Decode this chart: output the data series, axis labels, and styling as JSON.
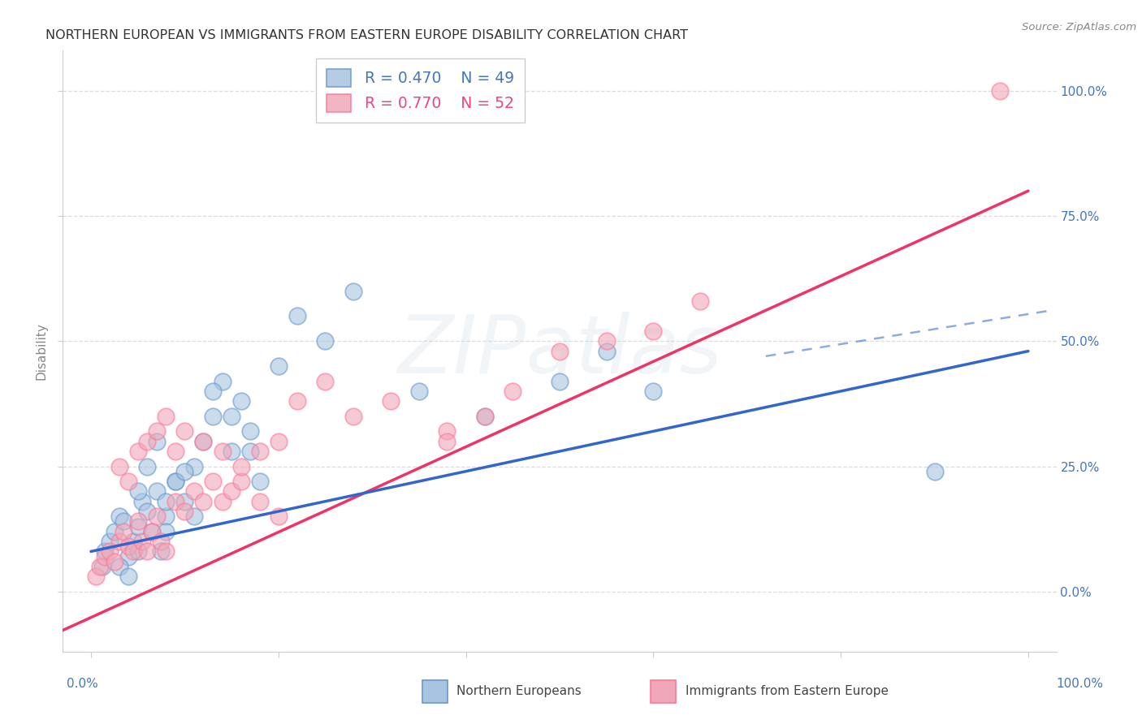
{
  "title": "NORTHERN EUROPEAN VS IMMIGRANTS FROM EASTERN EUROPE DISABILITY CORRELATION CHART",
  "source": "Source: ZipAtlas.com",
  "ylabel": "Disability",
  "ytick_labels": [
    "0.0%",
    "25.0%",
    "50.0%",
    "75.0%",
    "100.0%"
  ],
  "ytick_values": [
    0,
    25,
    50,
    75,
    100
  ],
  "legend_entries": [
    {
      "r": "R = 0.470",
      "n": "N = 49",
      "fill": "#A8C4E0",
      "edge": "#6699CC",
      "text": "#4477BB"
    },
    {
      "r": "R = 0.770",
      "n": "N = 52",
      "fill": "#F0A8B8",
      "edge": "#FF7799",
      "text": "#EE4488"
    }
  ],
  "blue_scatter_color": "#A8C4E0",
  "blue_scatter_edge": "#6699CC",
  "pink_scatter_color": "#F0A8B8",
  "pink_scatter_edge": "#FF7799",
  "blue_line_color": "#3366CC",
  "pink_line_color": "#EE3366",
  "blue_line": [
    0,
    8,
    100,
    48
  ],
  "pink_line": [
    -8,
    -12,
    100,
    80
  ],
  "blue_dash_line": [
    72,
    47,
    102,
    56
  ],
  "xlim": [
    -3,
    103
  ],
  "ylim": [
    -12,
    108
  ],
  "background_color": "#FFFFFF",
  "grid_color": "#DDDDDD",
  "title_color": "#333333",
  "source_color": "#888888",
  "axis_label_color": "#888888",
  "tick_color": "#4477BB",
  "watermark_text": "ZIPatlas",
  "watermark_color": "#BBCCDD",
  "watermark_alpha": 0.18,
  "legend_name_blue": "Northern Europeans",
  "legend_name_pink": "Immigrants from Eastern Europe",
  "blue_x": [
    1.2,
    1.5,
    2.0,
    2.5,
    3.0,
    3.5,
    4.0,
    4.5,
    5.0,
    5.5,
    6.0,
    6.5,
    7.0,
    7.5,
    8.0,
    9.0,
    10.0,
    11.0,
    12.0,
    13.0,
    14.0,
    15.0,
    16.0,
    17.0,
    18.0,
    5.0,
    6.0,
    7.0,
    8.0,
    9.0,
    10.0,
    11.0,
    13.0,
    15.0,
    17.0,
    20.0,
    22.0,
    25.0,
    28.0,
    35.0,
    42.0,
    50.0,
    55.0,
    60.0,
    90.0,
    3.0,
    4.0,
    5.0,
    8.0
  ],
  "blue_y": [
    5,
    8,
    10,
    12,
    15,
    14,
    7,
    10,
    13,
    18,
    16,
    12,
    20,
    8,
    15,
    22,
    18,
    25,
    30,
    35,
    42,
    28,
    38,
    32,
    22,
    20,
    25,
    30,
    18,
    22,
    24,
    15,
    40,
    35,
    28,
    45,
    55,
    50,
    60,
    40,
    35,
    42,
    48,
    40,
    24,
    5,
    3,
    8,
    12
  ],
  "pink_x": [
    0.5,
    1.0,
    1.5,
    2.0,
    2.5,
    3.0,
    3.5,
    4.0,
    4.5,
    5.0,
    5.5,
    6.0,
    6.5,
    7.0,
    7.5,
    8.0,
    9.0,
    10.0,
    11.0,
    12.0,
    13.0,
    14.0,
    15.0,
    3.0,
    4.0,
    5.0,
    6.0,
    7.0,
    8.0,
    9.0,
    10.0,
    12.0,
    14.0,
    16.0,
    18.0,
    20.0,
    22.0,
    25.0,
    28.0,
    32.0,
    38.0,
    45.0,
    50.0,
    55.0,
    60.0,
    65.0,
    38.0,
    42.0,
    16.0,
    18.0,
    20.0,
    97.0
  ],
  "pink_y": [
    3,
    5,
    7,
    8,
    6,
    10,
    12,
    9,
    8,
    14,
    10,
    8,
    12,
    15,
    10,
    8,
    18,
    16,
    20,
    18,
    22,
    18,
    20,
    25,
    22,
    28,
    30,
    32,
    35,
    28,
    32,
    30,
    28,
    22,
    18,
    30,
    38,
    42,
    35,
    38,
    32,
    40,
    48,
    50,
    52,
    58,
    30,
    35,
    25,
    28,
    15,
    100
  ]
}
